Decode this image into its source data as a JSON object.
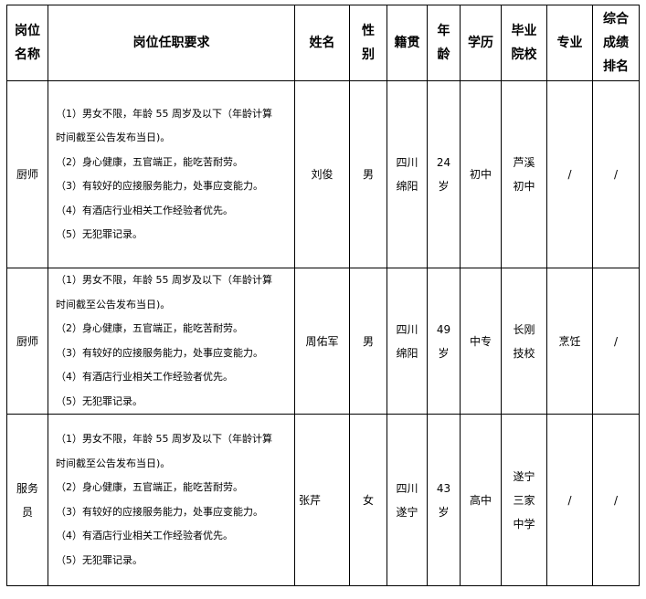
{
  "headers": {
    "position": [
      "岗位",
      "名称"
    ],
    "requirements": "岗位任职要求",
    "name": "姓名",
    "gender": [
      "性",
      "别"
    ],
    "origin": "籍贯",
    "age": [
      "年",
      "龄"
    ],
    "education": "学历",
    "school": [
      "毕业",
      "院校"
    ],
    "major": "专业",
    "rank": [
      "综合",
      "成绩",
      "排名"
    ]
  },
  "requirements": [
    "（1）男女不限，年龄 55 周岁及以下（年龄计算",
    "时间截至公告发布当日)。",
    "（2）身心健康，五官端正，能吃苦耐劳。",
    "（3）有较好的应接服务能力，处事应变能力。",
    "（4）有酒店行业相关工作经验者优先。",
    "（5）无犯罪记录。"
  ],
  "rows": [
    {
      "position": [
        "厨师"
      ],
      "name": "刘俊",
      "gender": "男",
      "origin": [
        "四川",
        "绵阳"
      ],
      "age": [
        "24",
        "岁"
      ],
      "education": "初中",
      "school": [
        "芦溪",
        "初中"
      ],
      "major": "/",
      "rank": "/"
    },
    {
      "position": [
        "厨师"
      ],
      "name": "周佑军",
      "gender": "男",
      "origin": [
        "四川",
        "绵阳"
      ],
      "age": [
        "49",
        "岁"
      ],
      "education": "中专",
      "school": [
        "长刚",
        "技校"
      ],
      "major": "烹饪",
      "rank": "/"
    },
    {
      "position": [
        "服务",
        "员"
      ],
      "name": "张芹",
      "gender": "女",
      "origin": [
        "四川",
        "遂宁"
      ],
      "age": [
        "43",
        "岁"
      ],
      "education": "高中",
      "school": [
        "遂宁",
        "三家",
        "中学"
      ],
      "major": "/",
      "rank": "/"
    }
  ]
}
